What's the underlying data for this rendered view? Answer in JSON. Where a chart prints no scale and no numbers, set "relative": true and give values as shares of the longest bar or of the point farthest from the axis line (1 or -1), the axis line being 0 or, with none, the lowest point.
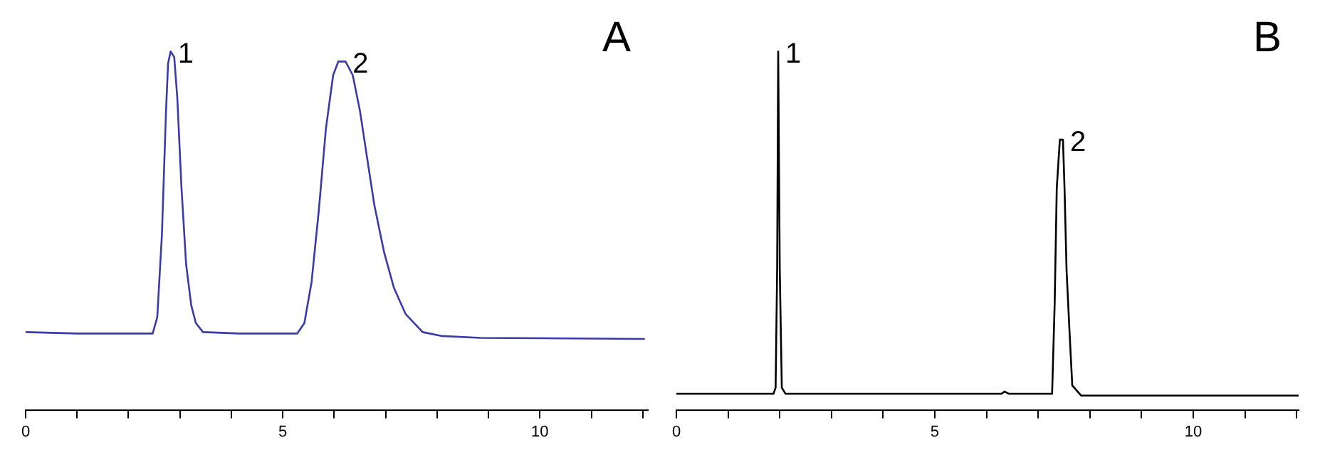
{
  "chart_data": [
    {
      "type": "line",
      "relative": true,
      "tick_labels": "x",
      "marker": "none",
      "line_style": "solid",
      "grid": false,
      "xlim": [
        0,
        12.1
      ],
      "xticks": [
        0,
        {
          "value": 1,
          "label": null
        },
        {
          "value": 2,
          "label": null
        },
        {
          "value": 3,
          "label": null
        },
        {
          "value": 4,
          "label": null
        },
        5,
        {
          "value": 6,
          "label": null
        },
        {
          "value": 7,
          "label": null
        },
        {
          "value": 8,
          "label": null
        },
        {
          "value": 9,
          "label": null
        },
        10,
        {
          "value": 11,
          "label": null
        },
        {
          "value": 12,
          "label": null
        }
      ],
      "annotations": [
        "A",
        {
          "text": "1",
          "x": 2.82,
          "y": 1.0
        },
        {
          "text": "2",
          "x": 6.22,
          "y": 0.972
        }
      ],
      "series": [
        {
          "color": "#3a3aa8",
          "x": [
            0,
            1.01,
            2.47,
            2.56,
            2.65,
            2.73,
            2.77,
            2.82,
            2.89,
            2.95,
            3.03,
            3.12,
            3.22,
            3.31,
            3.45,
            4.16,
            5.28,
            5.42,
            5.56,
            5.7,
            5.84,
            5.98,
            6.08,
            6.22,
            6.36,
            6.5,
            6.64,
            6.78,
            6.97,
            7.16,
            7.39,
            7.72,
            8.1,
            8.85,
            12.04
          ],
          "values": [
            0.217,
            0.213,
            0.213,
            0.259,
            0.489,
            0.835,
            0.967,
            1.0,
            0.984,
            0.868,
            0.621,
            0.407,
            0.292,
            0.242,
            0.217,
            0.213,
            0.213,
            0.242,
            0.357,
            0.555,
            0.786,
            0.934,
            0.972,
            0.972,
            0.934,
            0.835,
            0.703,
            0.572,
            0.44,
            0.341,
            0.267,
            0.217,
            0.206,
            0.201,
            0.198
          ]
        }
      ]
    },
    {
      "type": "line",
      "relative": true,
      "tick_labels": "x",
      "marker": "none",
      "line_style": "solid",
      "grid": false,
      "xlim": [
        0,
        12.04
      ],
      "xticks": [
        0,
        {
          "value": 1,
          "label": null
        },
        {
          "value": 2,
          "label": null
        },
        {
          "value": 3,
          "label": null
        },
        {
          "value": 4,
          "label": null
        },
        5,
        {
          "value": 6,
          "label": null
        },
        {
          "value": 7,
          "label": null
        },
        {
          "value": 8,
          "label": null
        },
        {
          "value": 9,
          "label": null
        },
        10,
        {
          "value": 11,
          "label": null
        },
        {
          "value": 12,
          "label": null
        }
      ],
      "annotations": [
        "B",
        {
          "text": "1",
          "x": 1.97,
          "y": 1.0
        },
        {
          "text": "2",
          "x": 7.48,
          "y": 0.754
        }
      ],
      "series": [
        {
          "color": "#000000",
          "x": [
            0,
            1.88,
            1.92,
            1.95,
            1.97,
            2.0,
            2.04,
            2.11,
            6.29,
            6.35,
            6.43,
            7.27,
            7.32,
            7.36,
            7.42,
            7.48,
            7.51,
            7.55,
            7.61,
            7.66,
            7.83,
            12.04
          ],
          "values": [
            0.045,
            0.045,
            0.062,
            0.395,
            1.0,
            0.395,
            0.062,
            0.045,
            0.045,
            0.051,
            0.045,
            0.045,
            0.299,
            0.619,
            0.754,
            0.754,
            0.619,
            0.388,
            0.209,
            0.068,
            0.04,
            0.04
          ]
        }
      ]
    }
  ]
}
